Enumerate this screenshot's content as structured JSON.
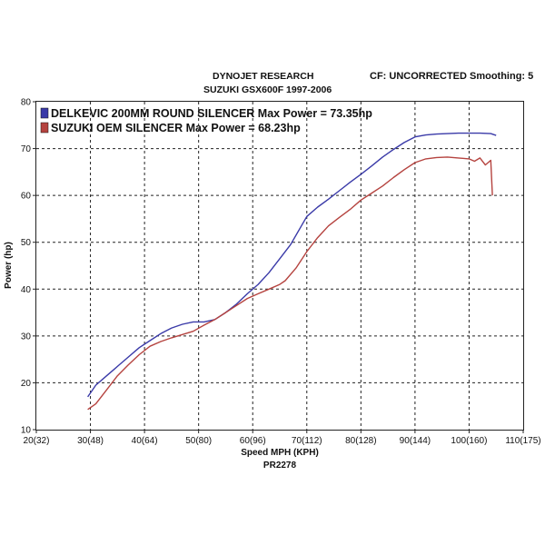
{
  "header": {
    "title": "DYNOJET RESEARCH",
    "subtitle": "SUZUKI GSX600F  1997-2006",
    "cf_label": "CF: UNCORRECTED  Smoothing: 5"
  },
  "footer": {
    "run_id": "PR2278"
  },
  "chart_data": {
    "type": "line",
    "title": "DYNOJET RESEARCH",
    "subtitle": "SUZUKI GSX600F  1997-2006",
    "xlabel": "Speed MPH (KPH)",
    "ylabel": "Power (hp)",
    "xlim": [
      20,
      110
    ],
    "ylim": [
      10,
      80
    ],
    "grid": true,
    "legend_position": "top-left",
    "x_ticks": [
      {
        "value": 20,
        "label": "20(32)"
      },
      {
        "value": 30,
        "label": "30(48)"
      },
      {
        "value": 40,
        "label": "40(64)"
      },
      {
        "value": 50,
        "label": "50(80)"
      },
      {
        "value": 60,
        "label": "60(96)"
      },
      {
        "value": 70,
        "label": "70(112)"
      },
      {
        "value": 80,
        "label": "80(128)"
      },
      {
        "value": 90,
        "label": "90(144)"
      },
      {
        "value": 100,
        "label": "100(160)"
      },
      {
        "value": 110,
        "label": "110(175)"
      }
    ],
    "y_ticks": [
      10,
      20,
      30,
      40,
      50,
      60,
      70,
      80
    ],
    "series": [
      {
        "name": "DELKEVIC 200MM ROUND SILENCER Max Power = 73.35hp",
        "color": "#3a3aa8",
        "x": [
          29.5,
          31,
          33,
          35,
          37,
          39,
          41,
          43,
          45,
          47,
          49,
          51,
          53,
          55,
          57,
          59,
          61,
          63,
          65,
          67,
          69,
          70,
          72,
          74,
          76,
          78,
          80,
          82,
          84,
          86,
          88,
          90,
          92,
          94,
          96,
          98,
          100,
          102,
          104,
          105
        ],
        "y": [
          17.0,
          19.5,
          21.5,
          23.5,
          25.5,
          27.5,
          29.0,
          30.5,
          31.7,
          32.5,
          33.0,
          33.0,
          33.5,
          35.0,
          36.8,
          39.0,
          41.0,
          43.5,
          46.5,
          49.5,
          53.5,
          55.5,
          57.5,
          59.2,
          61.0,
          62.8,
          64.5,
          66.3,
          68.2,
          69.8,
          71.3,
          72.5,
          72.9,
          73.1,
          73.2,
          73.3,
          73.3,
          73.3,
          73.2,
          72.8
        ]
      },
      {
        "name": "SUZUKI OEM SILENCER Max Power = 68.23hp",
        "color": "#b5433f",
        "x": [
          29.5,
          31,
          33,
          35,
          37,
          39,
          41,
          43,
          45,
          47,
          49,
          51,
          53,
          55,
          57,
          59,
          61,
          63,
          65,
          66,
          68,
          70,
          72,
          74,
          76,
          78,
          80,
          82,
          84,
          86,
          88,
          90,
          92,
          94,
          96,
          98,
          100,
          101,
          102,
          103,
          104,
          104.3
        ],
        "y": [
          14.3,
          15.5,
          18.5,
          21.5,
          23.8,
          26.0,
          27.8,
          28.8,
          29.6,
          30.3,
          31.0,
          32.3,
          33.5,
          35.0,
          36.5,
          38.0,
          39.0,
          40.0,
          41.0,
          41.8,
          44.5,
          48.0,
          51.0,
          53.5,
          55.3,
          57.0,
          59.0,
          60.5,
          62.0,
          63.8,
          65.5,
          67.0,
          67.8,
          68.1,
          68.2,
          68.0,
          67.8,
          67.3,
          68.0,
          66.5,
          67.5,
          60.0
        ]
      }
    ]
  }
}
